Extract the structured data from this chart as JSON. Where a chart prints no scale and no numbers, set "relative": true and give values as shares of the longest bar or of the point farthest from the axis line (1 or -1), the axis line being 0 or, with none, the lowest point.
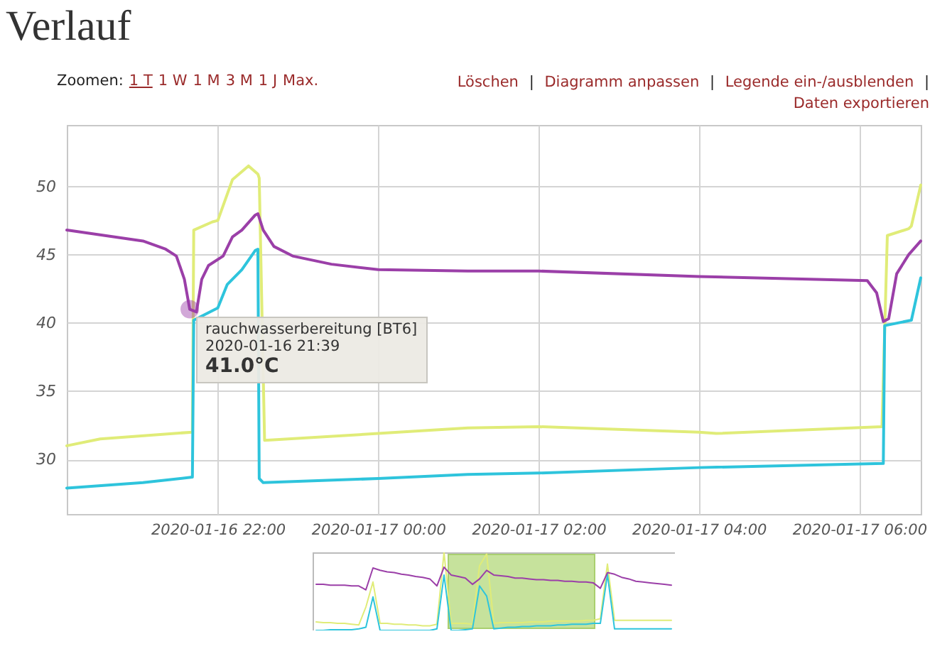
{
  "chart_data": [
    {
      "type": "line",
      "title": "Verlauf",
      "annotations": [
        "Zoomen:",
        "1 T",
        "1 W",
        "1 M",
        "3 M",
        "1 J",
        "Max.",
        "Löschen",
        "|",
        "Diagramm anpassen",
        "|",
        "Legende ein-/ausblenden",
        "|",
        "Daten exportieren",
        {
          "text": "rauchwasserbereitung [BT6]",
          "x": "2020-01-16T21:39",
          "y": 41.0
        },
        "2020-01-16 21:39",
        "41.0°C"
      ],
      "xlim": [
        "2020-01-16T20:07",
        "2020-01-17T06:46"
      ],
      "xticks": [
        {
          "value": "2020-01-16T22:00",
          "label": "2020-01-16 22:00"
        },
        {
          "value": "2020-01-17T00:00",
          "label": "2020-01-17 00:00"
        },
        {
          "value": "2020-01-17T02:00",
          "label": "2020-01-17 02:00"
        },
        {
          "value": "2020-01-17T04:00",
          "label": "2020-01-17 04:00"
        },
        {
          "value": "2020-01-17T06:00",
          "label": "2020-01-17 06:00"
        }
      ],
      "ylim": [
        26,
        54.5
      ],
      "yticks": [
        30,
        35,
        40,
        45,
        50
      ],
      "grid": true,
      "series": [
        {
          "color": "#e0ec78",
          "x": [
            "2020-01-16T20:07",
            "2020-01-16T20:32",
            "2020-01-16T21:41",
            "2020-01-16T21:42",
            "2020-01-16T21:56",
            "2020-01-16T22:00",
            "2020-01-16T22:11",
            "2020-01-16T22:23",
            "2020-01-16T22:30",
            "2020-01-16T22:31",
            "2020-01-16T22:35",
            "2020-01-17T00:00",
            "2020-01-17T01:07",
            "2020-01-17T02:00",
            "2020-01-17T04:00",
            "2020-01-17T04:13",
            "2020-01-17T06:17",
            "2020-01-17T06:21",
            "2020-01-17T06:37",
            "2020-01-17T06:39",
            "2020-01-17T06:46"
          ],
          "values": [
            31.0,
            31.5,
            32.0,
            46.8,
            47.4,
            47.5,
            50.5,
            51.5,
            50.9,
            50.6,
            31.4,
            31.9,
            32.3,
            32.4,
            32.0,
            31.9,
            32.4,
            46.4,
            46.9,
            47.1,
            50.1
          ]
        },
        {
          "color": "#2ec4dc",
          "x": [
            "2020-01-16T20:07",
            "2020-01-16T21:04",
            "2020-01-16T21:41",
            "2020-01-16T21:42",
            "2020-01-16T22:00",
            "2020-01-16T22:07",
            "2020-01-16T22:18",
            "2020-01-16T22:28",
            "2020-01-16T22:30",
            "2020-01-16T22:31",
            "2020-01-16T22:34",
            "2020-01-17T00:00",
            "2020-01-17T01:07",
            "2020-01-17T02:00",
            "2020-01-17T04:00",
            "2020-01-17T06:18",
            "2020-01-17T06:19",
            "2020-01-17T06:39",
            "2020-01-17T06:46"
          ],
          "values": [
            27.9,
            28.3,
            28.7,
            40.2,
            41.1,
            42.8,
            43.9,
            45.3,
            45.4,
            28.6,
            28.3,
            28.6,
            28.9,
            29.0,
            29.4,
            29.7,
            39.8,
            40.2,
            43.3
          ]
        },
        {
          "color": "#9b3fa8",
          "x": [
            "2020-01-16T20:07",
            "2020-01-16T21:04",
            "2020-01-16T21:21",
            "2020-01-16T21:29",
            "2020-01-16T21:35",
            "2020-01-16T21:39",
            "2020-01-16T21:44",
            "2020-01-16T21:48",
            "2020-01-16T21:53",
            "2020-01-16T22:04",
            "2020-01-16T22:11",
            "2020-01-16T22:18",
            "2020-01-16T22:28",
            "2020-01-16T22:30",
            "2020-01-16T22:34",
            "2020-01-16T22:42",
            "2020-01-16T22:56",
            "2020-01-16T23:25",
            "2020-01-17T00:00",
            "2020-01-17T01:07",
            "2020-01-17T02:00",
            "2020-01-17T04:00",
            "2020-01-17T06:06",
            "2020-01-17T06:13",
            "2020-01-17T06:18",
            "2020-01-17T06:22",
            "2020-01-17T06:28",
            "2020-01-17T06:37",
            "2020-01-17T06:46"
          ],
          "values": [
            46.8,
            46.0,
            45.4,
            44.9,
            43.2,
            41.0,
            40.8,
            43.2,
            44.2,
            44.9,
            46.3,
            46.8,
            47.9,
            48.0,
            46.8,
            45.6,
            44.9,
            44.3,
            43.9,
            43.8,
            43.8,
            43.4,
            43.1,
            42.2,
            40.1,
            40.3,
            43.6,
            45.0,
            46.0
          ]
        }
      ]
    },
    {
      "type": "line",
      "relative": true,
      "categories": [
        null,
        null,
        null,
        null,
        null,
        null,
        null,
        null,
        null,
        null,
        null,
        null,
        null,
        null,
        null,
        null,
        null,
        null,
        null,
        null,
        null,
        null,
        null,
        null,
        null,
        null,
        null,
        null,
        null,
        null,
        null,
        null,
        null,
        null,
        null,
        null,
        null,
        null,
        null,
        null,
        null,
        null,
        null,
        null,
        null,
        null,
        null,
        null,
        null,
        null,
        null
      ],
      "series": [
        {
          "color": "#e0ec78",
          "values": [
            0.11,
            0.1,
            0.1,
            0.09,
            0.09,
            0.08,
            0.07,
            0.3,
            0.62,
            0.09,
            0.09,
            0.08,
            0.08,
            0.07,
            0.07,
            0.06,
            0.06,
            0.08,
            1,
            0.09,
            0.09,
            0.09,
            0.08,
            0.83,
            0.98,
            0.09,
            0.1,
            0.1,
            0.1,
            0.1,
            0.11,
            0.11,
            0.11,
            0.12,
            0.12,
            0.12,
            0.12,
            0.12,
            0.13,
            0.13,
            0.15,
            0.85,
            0.13,
            0.13,
            0.13,
            0.13,
            0.13,
            0.13,
            0.13,
            0.13,
            0.13
          ]
        },
        {
          "color": "#2ec4dc",
          "values": [
            0,
            0,
            0.01,
            0.01,
            0.01,
            0.01,
            0.02,
            0.04,
            0.43,
            0,
            0,
            0,
            0,
            0,
            0,
            0,
            0,
            0.02,
            0.71,
            0,
            0,
            0.01,
            0.02,
            0.57,
            0.44,
            0.02,
            0.03,
            0.04,
            0.04,
            0.05,
            0.05,
            0.06,
            0.06,
            0.06,
            0.07,
            0.07,
            0.08,
            0.08,
            0.08,
            0.09,
            0.09,
            0.72,
            0.02,
            0.02,
            0.02,
            0.02,
            0.02,
            0.02,
            0.02,
            0.02,
            0.02
          ]
        },
        {
          "color": "#9b3fa8",
          "values": [
            0.59,
            0.59,
            0.58,
            0.58,
            0.58,
            0.57,
            0.57,
            0.52,
            0.8,
            0.77,
            0.75,
            0.74,
            0.72,
            0.71,
            0.69,
            0.68,
            0.66,
            0.57,
            0.81,
            0.71,
            0.69,
            0.67,
            0.59,
            0.66,
            0.77,
            0.71,
            0.7,
            0.69,
            0.67,
            0.67,
            0.66,
            0.65,
            0.65,
            0.64,
            0.64,
            0.63,
            0.63,
            0.62,
            0.62,
            0.61,
            0.54,
            0.74,
            0.72,
            0.68,
            0.66,
            0.63,
            0.62,
            0.61,
            0.6,
            0.59,
            0.58
          ]
        }
      ]
    }
  ]
}
